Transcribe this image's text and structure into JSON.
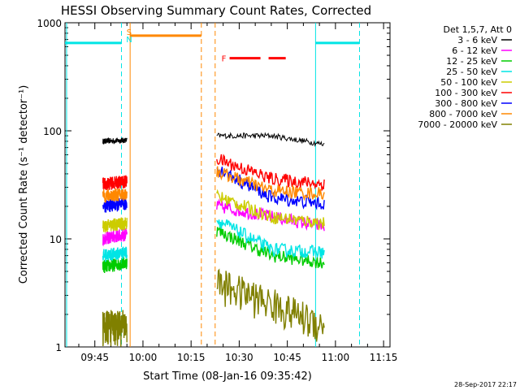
{
  "chart_data": {
    "type": "line",
    "title": "HESSI Observing Summary Count Rates, Corrected",
    "xlabel": "Start Time (08-Jan-16 09:35:42)",
    "ylabel": "Corrected Count Rate (s⁻¹ detector⁻¹)",
    "y_scale": "log",
    "ylim": [
      1,
      1000
    ],
    "xlim_minutes": [
      575.7,
      677
    ],
    "x_ticks": [
      {
        "label": "09:45",
        "t": 585
      },
      {
        "label": "10:00",
        "t": 600
      },
      {
        "label": "10:15",
        "t": 615
      },
      {
        "label": "10:30",
        "t": 630
      },
      {
        "label": "10:45",
        "t": 645
      },
      {
        "label": "11:00",
        "t": 660
      },
      {
        "label": "11:15",
        "t": 675
      }
    ],
    "y_ticks": [
      {
        "label": "1",
        "v": 1
      },
      {
        "label": "10",
        "v": 10
      },
      {
        "label": "100",
        "v": 100
      },
      {
        "label": "1000",
        "v": 1000
      }
    ],
    "legend_title": "Det 1,5,7, Att 0",
    "series": [
      {
        "name": "3 - 6 keV",
        "color": "#000000",
        "values": {
          "seg1": [
            80,
            82
          ],
          "seg2": [
            90,
            90,
            75
          ]
        }
      },
      {
        "name": "6 - 12 keV",
        "color": "#ff00ff",
        "values": {
          "seg1": [
            10,
            11
          ],
          "seg2": [
            20,
            16,
            13
          ]
        }
      },
      {
        "name": "12 - 25 keV",
        "color": "#00cc00",
        "values": {
          "seg1": [
            5.5,
            6
          ],
          "seg2": [
            12,
            7,
            6
          ]
        }
      },
      {
        "name": "25 - 50 keV",
        "color": "#00e5e5",
        "values": {
          "seg1": [
            7,
            7.5
          ],
          "seg2": [
            15,
            8,
            7.5
          ]
        }
      },
      {
        "name": "50 - 100 keV",
        "color": "#cccc00",
        "values": {
          "seg1": [
            13,
            14
          ],
          "seg2": [
            25,
            16,
            14
          ]
        }
      },
      {
        "name": "100 - 300 keV",
        "color": "#ff0000",
        "values": {
          "seg1": [
            32,
            34
          ],
          "seg2": [
            55,
            36,
            32
          ]
        }
      },
      {
        "name": "300 - 800 keV",
        "color": "#0000ff",
        "values": {
          "seg1": [
            20,
            21
          ],
          "seg2": [
            45,
            24,
            21
          ]
        }
      },
      {
        "name": "800 - 7000 keV",
        "color": "#ff8800",
        "values": {
          "seg1": [
            25,
            26
          ],
          "seg2": [
            42,
            28,
            26
          ]
        }
      },
      {
        "name": "7000 - 20000 keV",
        "color": "#808000",
        "values": {
          "seg1": [
            1,
            1
          ],
          "seg2": [
            2.5,
            1.6,
            1
          ]
        }
      }
    ],
    "segments": {
      "seg1": {
        "t": [
          587.5,
          595.0
        ]
      },
      "seg2": {
        "t": [
          623.0,
          640.0,
          656.5
        ]
      }
    },
    "markers": [
      {
        "label": "S",
        "color": "#ff8800",
        "t": 595.7,
        "kind": "text"
      },
      {
        "label": "N",
        "color": "#00e5e5",
        "t": 595.7,
        "kind": "text"
      },
      {
        "label": "F",
        "color": "#ff0000",
        "t": 625.2,
        "kind": "text"
      }
    ],
    "bars": [
      {
        "color": "#00e5e5",
        "t0": 575.7,
        "t1": 593.3,
        "level": 650
      },
      {
        "color": "#ff8800",
        "t0": 596.0,
        "t1": 618.2,
        "level": 760
      },
      {
        "color": "#ff0000",
        "t0": 627.0,
        "t1": 644.5,
        "level": 470,
        "dashed": true
      },
      {
        "color": "#00e5e5",
        "t0": 653.8,
        "t1": 667.5,
        "level": 650
      }
    ],
    "vlines": [
      {
        "color": "#00e5e5",
        "t": 576.2,
        "dashed": false
      },
      {
        "color": "#00e5e5",
        "t": 593.3,
        "dashed": true
      },
      {
        "color": "#ff8800",
        "t": 596.0,
        "dashed": false
      },
      {
        "color": "#ff8800",
        "t": 618.2,
        "dashed": true
      },
      {
        "color": "#ff8800",
        "t": 622.5,
        "dashed": true
      },
      {
        "color": "#00e5e5",
        "t": 653.8,
        "dashed": false
      },
      {
        "color": "#00e5e5",
        "t": 667.5,
        "dashed": true
      }
    ]
  },
  "footer": {
    "timestamp": "28-Sep-2017 22:17"
  }
}
